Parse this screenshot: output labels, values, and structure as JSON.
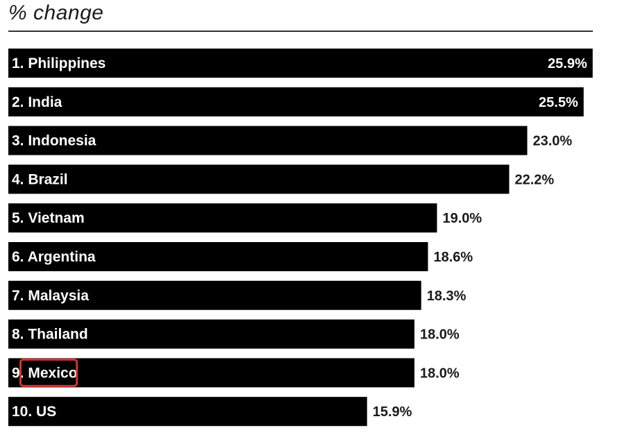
{
  "title": "% change",
  "colors": {
    "bar": "#000000",
    "bar_text": "#ffffff",
    "value_text": "#1a1a1a",
    "highlight": "#d9312b"
  },
  "chart_data": {
    "type": "bar",
    "orientation": "horizontal",
    "title": "% change",
    "categories": [
      "1. Philippines",
      "2. India",
      "3. Indonesia",
      "4. Brazil",
      "5. Vietnam",
      "6. Argentina",
      "7. Malaysia",
      "8. Thailand",
      "9. Mexico",
      "10. US"
    ],
    "values": [
      25.9,
      25.5,
      23.0,
      22.2,
      19.0,
      18.6,
      18.3,
      18.0,
      18.0,
      15.9
    ],
    "value_labels": [
      "25.9%",
      "25.5%",
      "23.0%",
      "22.2%",
      "19.0%",
      "18.6%",
      "18.3%",
      "18.0%",
      "18.0%",
      "15.9%"
    ],
    "highlighted_category": "9. Mexico",
    "highlighted_word": "Mexico",
    "grid": false,
    "legend": "none"
  }
}
